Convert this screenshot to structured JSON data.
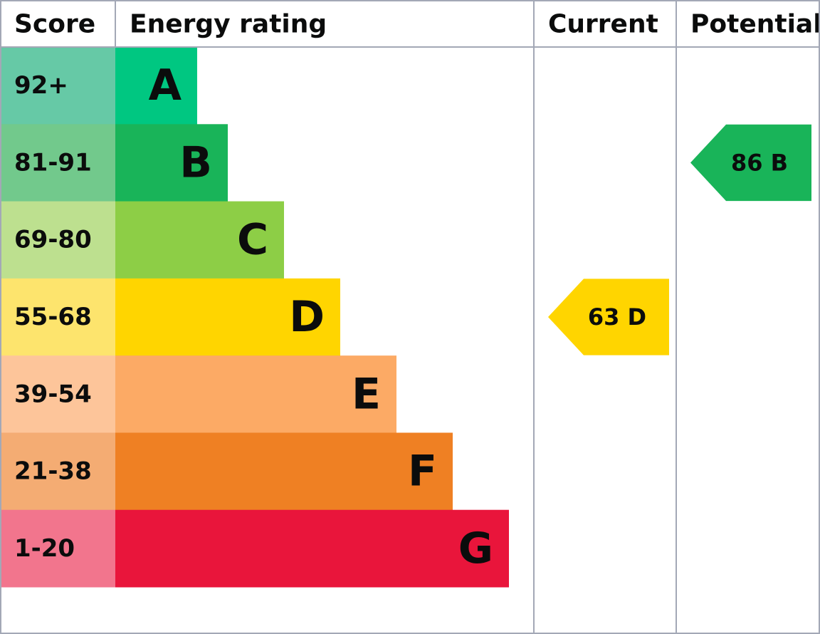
{
  "headers": {
    "score": "Score",
    "rating": "Energy rating",
    "current": "Current",
    "potential": "Potential"
  },
  "rows": [
    {
      "score": "92+",
      "band": "A",
      "score_color": "#66c9a6",
      "bar_color": "#00c781"
    },
    {
      "score": "81-91",
      "band": "B",
      "score_color": "#72c98c",
      "bar_color": "#19b459"
    },
    {
      "score": "69-80",
      "band": "C",
      "score_color": "#bde08f",
      "bar_color": "#8dce46"
    },
    {
      "score": "55-68",
      "band": "D",
      "score_color": "#fde46d",
      "bar_color": "#ffd500"
    },
    {
      "score": "39-54",
      "band": "E",
      "score_color": "#fdc59a",
      "bar_color": "#fcaa65"
    },
    {
      "score": "21-38",
      "band": "F",
      "score_color": "#f4ac73",
      "bar_color": "#ef8023"
    },
    {
      "score": "1-20",
      "band": "G",
      "score_color": "#f2758d",
      "bar_color": "#e9153b"
    }
  ],
  "current": {
    "score": 63,
    "band": "D"
  },
  "potential": {
    "score": 86,
    "band": "B"
  }
}
